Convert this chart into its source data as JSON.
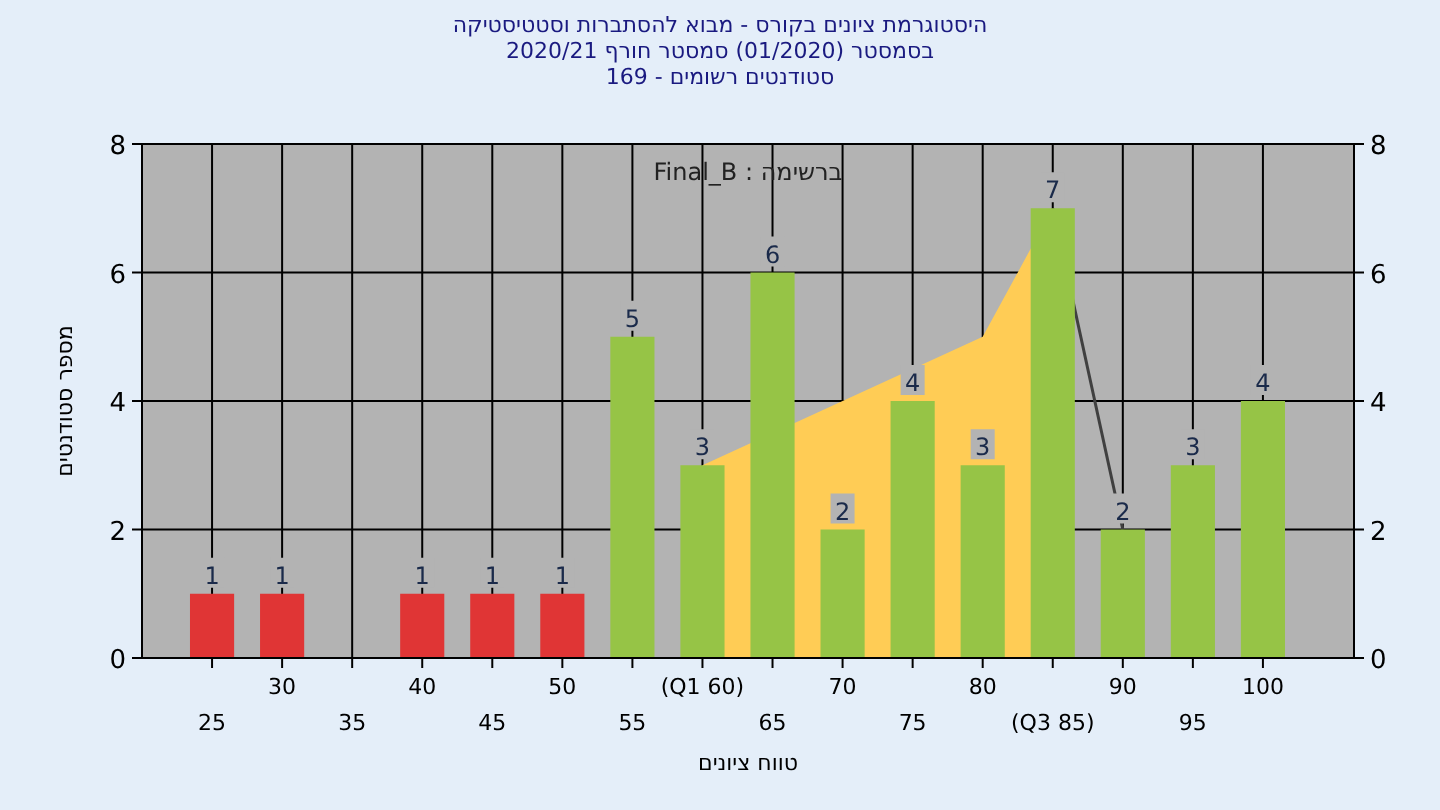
{
  "chart_data": {
    "type": "bar",
    "title": "היסטוגרמת ציונים בקורס - מבוא להסתברות וסטטיסטיקה",
    "subtitle": "בסמסטר (01/2020) סמסטר חורף 2020/21\nסטודנטים רשומים - 169",
    "xlabel": "טווח ציונים",
    "ylabel": "מספר סטודנטים",
    "annotations": [
      "ברשימה : Final_B"
    ],
    "categories": [
      "25",
      "30",
      "35",
      "40",
      "45",
      "50",
      "55",
      "(Q1 60)",
      "65",
      "70",
      "75",
      "80",
      "(Q3 85)",
      "90",
      "95",
      "100"
    ],
    "series": [
      {
        "type": "area",
        "color": "#ffcc55",
        "values": [
          null,
          null,
          null,
          null,
          null,
          null,
          null,
          3,
          null,
          4,
          null,
          5,
          7,
          null,
          null,
          null
        ]
      },
      {
        "type": "line",
        "color": "#404040",
        "values": [
          null,
          null,
          null,
          null,
          null,
          null,
          null,
          null,
          null,
          null,
          null,
          null,
          7,
          2,
          null,
          null
        ]
      },
      {
        "colors": [
          "#e03535",
          "#e03535",
          "#e03535",
          "#e03535",
          "#e03535",
          "#e03535",
          "#96c446",
          "#96c446",
          "#96c446",
          "#96c446",
          "#96c446",
          "#96c446",
          "#96c446",
          "#96c446",
          "#96c446",
          "#96c446"
        ],
        "values": [
          1,
          1,
          0,
          1,
          1,
          1,
          5,
          3,
          6,
          2,
          4,
          3,
          7,
          2,
          3,
          4
        ],
        "value_labels": [
          "1",
          "1",
          null,
          "1",
          "1",
          "1",
          "5",
          "3",
          "6",
          "2",
          "4",
          "3",
          "7",
          "2",
          "3",
          "4"
        ]
      }
    ],
    "ylim": [
      0,
      8
    ],
    "yticks": [
      0,
      2,
      4,
      6,
      8
    ],
    "y2lim": [
      0,
      8
    ],
    "y2ticks": [
      0,
      2,
      4,
      6,
      8
    ],
    "grid": true
  }
}
